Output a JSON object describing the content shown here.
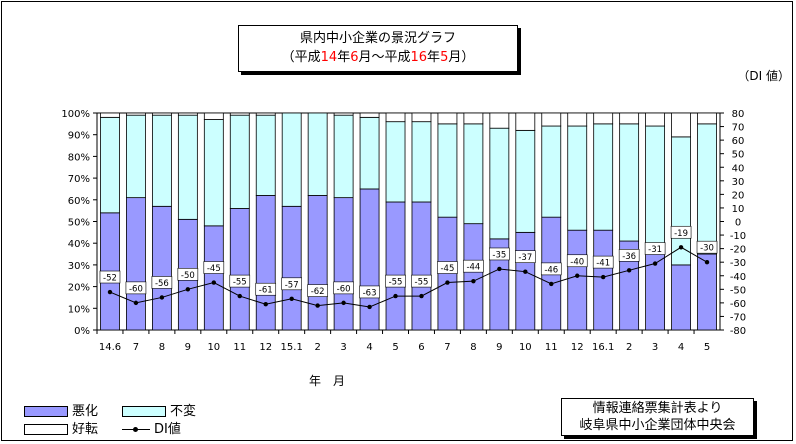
{
  "title": {
    "line1": "県内中小企業の景況グラフ",
    "line2_parts": [
      "（平成",
      "14",
      "年",
      "6",
      "月～平成",
      "16",
      "年",
      "5",
      "月）"
    ]
  },
  "di_unit_label": "（DI 値）",
  "xlabel": "年　月",
  "legend": {
    "bad": "悪化",
    "unchanged": "不変",
    "good": "好転",
    "di": "DI値"
  },
  "source": {
    "line1": "情報連絡票集計表より",
    "line2": "岐阜県中小企業団体中央会"
  },
  "colors": {
    "bad": "#9999ff",
    "unchanged": "#ccffff",
    "good": "#ffffff",
    "di_line": "#000000",
    "title_accent": "#ff0000"
  },
  "chart_data": {
    "type": "bar",
    "stacked": true,
    "categories": [
      "14.6",
      "7",
      "8",
      "9",
      "10",
      "11",
      "12",
      "15.1",
      "2",
      "3",
      "4",
      "5",
      "6",
      "7",
      "8",
      "9",
      "10",
      "11",
      "12",
      "16.1",
      "2",
      "3",
      "4",
      "5"
    ],
    "series": [
      {
        "name": "悪化",
        "values": [
          54,
          61,
          57,
          51,
          48,
          56,
          62,
          57,
          62,
          61,
          65,
          59,
          59,
          52,
          49,
          42,
          45,
          52,
          46,
          46,
          41,
          35,
          30,
          35
        ]
      },
      {
        "name": "不変",
        "values": [
          44,
          38,
          42,
          48,
          49,
          43,
          37,
          43,
          38,
          38,
          33,
          37,
          37,
          43,
          46,
          51,
          47,
          42,
          48,
          49,
          54,
          59,
          59,
          60
        ]
      },
      {
        "name": "好転",
        "values": [
          2,
          1,
          1,
          1,
          3,
          1,
          1,
          0,
          0,
          1,
          2,
          4,
          4,
          5,
          5,
          7,
          8,
          6,
          6,
          5,
          5,
          6,
          11,
          5
        ]
      }
    ],
    "di": {
      "name": "DI値",
      "values": [
        -52,
        -60,
        -56,
        -50,
        -45,
        -55,
        -61,
        -57,
        -62,
        -60,
        -63,
        -55,
        -55,
        -45,
        -44,
        -35,
        -37,
        -46,
        -40,
        -41,
        -36,
        -31,
        -19,
        -30
      ]
    },
    "y_left": {
      "min": 0,
      "max": 100,
      "step": 10,
      "unit": "%"
    },
    "y_right": {
      "min": -80,
      "max": 80,
      "step": 10
    },
    "xlabel": "年　月",
    "grid": false,
    "legend_position": "bottom-left"
  }
}
